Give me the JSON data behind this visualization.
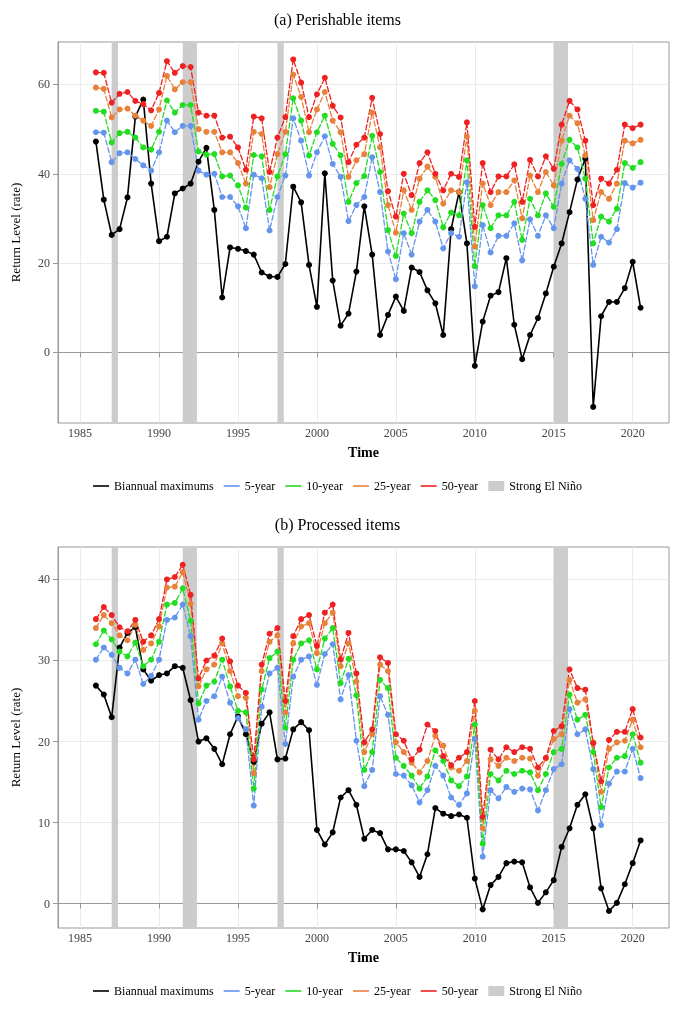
{
  "chart_data": [
    {
      "type": "line",
      "title": "(a) Perishable items",
      "xlabel": "Time",
      "ylabel": "Return Level (rate)",
      "x": [
        1986,
        1986.5,
        1987,
        1987.5,
        1988,
        1988.5,
        1989,
        1989.5,
        1990,
        1990.5,
        1991,
        1991.5,
        1992,
        1992.5,
        1993,
        1993.5,
        1994,
        1994.5,
        1995,
        1995.5,
        1996,
        1996.5,
        1997,
        1997.5,
        1998,
        1998.5,
        1999,
        1999.5,
        2000,
        2000.5,
        2001,
        2001.5,
        2002,
        2002.5,
        2003,
        2003.5,
        2004,
        2004.5,
        2005,
        2005.5,
        2006,
        2006.5,
        2007,
        2007.5,
        2008,
        2008.5,
        2009,
        2009.5,
        2010,
        2010.5,
        2011,
        2011.5,
        2012,
        2012.5,
        2013,
        2013.5,
        2014,
        2014.5,
        2015,
        2015.5,
        2016,
        2016.5,
        2017,
        2017.5,
        2018,
        2018.5,
        2019,
        2019.5,
        2020,
        2020.5
      ],
      "series": [
        {
          "name": "Biannual maximums",
          "color": "#000000",
          "line_style": "solid",
          "values": [
            47.2,
            34.2,
            26.3,
            27.6,
            34.7,
            52.8,
            56.6,
            37.8,
            24.9,
            25.9,
            35.6,
            36.7,
            37.8,
            42.7,
            45.8,
            31.9,
            12.3,
            23.5,
            23.2,
            22.7,
            21.9,
            17.9,
            17.0,
            16.9,
            19.8,
            37.1,
            33.6,
            19.6,
            10.2,
            40.1,
            16.1,
            6.0,
            8.7,
            18.1,
            32.7,
            21.9,
            3.9,
            8.4,
            12.5,
            9.3,
            19.0,
            18.0,
            13.9,
            11.0,
            3.9,
            27.6,
            35.9,
            24.4,
            -3.0,
            6.9,
            12.7,
            13.5,
            21.1,
            6.2,
            -1.5,
            3.9,
            7.7,
            13.2,
            19.2,
            24.4,
            31.4,
            38.7,
            43.4,
            -12.2,
            8.1,
            11.3,
            11.3,
            14.4,
            20.3,
            10.0
          ]
        },
        {
          "name": "5-year",
          "color": "#6495ed",
          "line_style": "dashed",
          "values": [
            49.3,
            49.2,
            42.6,
            44.6,
            44.8,
            43.3,
            41.9,
            40.7,
            44.8,
            51.9,
            49.3,
            50.7,
            50.7,
            40.7,
            39.8,
            40.0,
            34.8,
            34.8,
            32.7,
            27.8,
            39.8,
            39.0,
            27.3,
            34.8,
            39.6,
            52.4,
            47.4,
            39.6,
            44.8,
            48.4,
            42.2,
            39.3,
            29.4,
            33.0,
            34.8,
            43.7,
            35.9,
            22.6,
            16.4,
            26.7,
            21.9,
            29.3,
            31.9,
            29.3,
            23.3,
            26.7,
            25.9,
            38.1,
            14.8,
            28.5,
            22.4,
            26.1,
            26.1,
            28.9,
            20.6,
            29.8,
            26.1,
            30.7,
            27.8,
            37.8,
            43.0,
            41.1,
            34.4,
            19.6,
            25.9,
            24.6,
            27.6,
            37.9,
            36.9,
            38.0
          ]
        },
        {
          "name": "10-year",
          "color": "#22dd22",
          "line_style": "dashed",
          "values": [
            54.1,
            53.9,
            47.0,
            49.1,
            49.4,
            48.1,
            45.9,
            45.4,
            49.4,
            56.4,
            53.7,
            55.4,
            55.4,
            45.0,
            44.3,
            44.4,
            39.4,
            39.6,
            37.4,
            32.4,
            44.2,
            43.9,
            31.9,
            39.4,
            44.4,
            56.9,
            51.9,
            44.1,
            49.3,
            53.0,
            46.7,
            44.1,
            33.7,
            37.9,
            39.5,
            48.5,
            40.4,
            27.4,
            21.6,
            31.1,
            26.7,
            33.7,
            36.3,
            34.1,
            28.0,
            31.3,
            30.7,
            43.0,
            19.3,
            33.0,
            27.8,
            30.7,
            30.7,
            33.7,
            25.2,
            34.4,
            30.7,
            35.6,
            32.6,
            42.2,
            47.6,
            45.9,
            38.9,
            24.4,
            30.4,
            29.3,
            32.2,
            42.4,
            41.3,
            42.6
          ]
        },
        {
          "name": "25-year",
          "color": "#e8823a",
          "line_style": "dashed",
          "values": [
            59.3,
            59.0,
            52.6,
            54.4,
            54.6,
            53.0,
            51.9,
            50.7,
            54.4,
            61.9,
            58.9,
            60.5,
            60.5,
            50.0,
            49.4,
            49.4,
            44.8,
            44.8,
            42.4,
            37.8,
            49.4,
            48.9,
            37.0,
            44.4,
            49.4,
            62.2,
            57.2,
            49.3,
            54.4,
            58.3,
            51.9,
            49.3,
            39.3,
            43.0,
            44.4,
            53.7,
            45.9,
            33.0,
            26.8,
            36.3,
            31.9,
            38.9,
            41.6,
            39.3,
            33.3,
            36.3,
            35.9,
            48.3,
            23.7,
            37.8,
            33.0,
            35.9,
            35.9,
            38.5,
            30.0,
            39.6,
            35.9,
            40.4,
            37.4,
            47.4,
            53.0,
            51.3,
            44.1,
            29.6,
            35.9,
            34.4,
            37.8,
            47.4,
            46.8,
            47.6
          ]
        },
        {
          "name": "50-year",
          "color": "#ee2222",
          "line_style": "dashed",
          "values": [
            62.7,
            62.6,
            55.9,
            57.9,
            58.3,
            56.3,
            55.6,
            54.2,
            58.1,
            65.2,
            62.6,
            64.1,
            63.9,
            53.7,
            53.0,
            53.0,
            48.1,
            48.3,
            45.9,
            40.9,
            52.8,
            52.4,
            40.4,
            48.1,
            52.7,
            65.6,
            60.4,
            52.7,
            57.8,
            61.5,
            55.2,
            52.6,
            42.6,
            46.5,
            48.1,
            57.0,
            48.9,
            36.1,
            30.4,
            40.0,
            35.2,
            42.4,
            44.8,
            40.0,
            36.3,
            40.0,
            39.3,
            51.5,
            28.1,
            42.4,
            35.9,
            39.4,
            39.4,
            42.1,
            33.7,
            43.1,
            39.4,
            43.9,
            41.1,
            51.0,
            56.3,
            54.4,
            47.4,
            33.0,
            38.9,
            37.8,
            40.9,
            51.0,
            50.2,
            51.0
          ]
        }
      ],
      "bands": [
        {
          "axis": "x",
          "from": 1987.0,
          "to": 1987.4,
          "label": "Strong El Niño",
          "color": "#cccccc"
        },
        {
          "axis": "x",
          "from": 1991.5,
          "to": 1992.4,
          "color": "#cccccc"
        },
        {
          "axis": "x",
          "from": 1997.5,
          "to": 1997.9,
          "color": "#cccccc"
        },
        {
          "axis": "x",
          "from": 2015.0,
          "to": 2015.9,
          "color": "#cccccc"
        }
      ],
      "xlim": [
        1983.6,
        2022.3
      ],
      "xticks": [
        1985,
        1990,
        1995,
        2000,
        2005,
        2010,
        2015,
        2020
      ],
      "ylim": [
        -15.8,
        69.5
      ],
      "yticks": [
        0,
        20,
        40,
        60
      ],
      "grid": true,
      "legend": "bottom",
      "marker": "circle"
    },
    {
      "type": "line",
      "title": "(b) Processed items",
      "xlabel": "Time",
      "ylabel": "Return Level (rate)",
      "x": [
        1986,
        1986.5,
        1987,
        1987.5,
        1988,
        1988.5,
        1989,
        1989.5,
        1990,
        1990.5,
        1991,
        1991.5,
        1992,
        1992.5,
        1993,
        1993.5,
        1994,
        1994.5,
        1995,
        1995.5,
        1996,
        1996.5,
        1997,
        1997.5,
        1998,
        1998.5,
        1999,
        1999.5,
        2000,
        2000.5,
        2001,
        2001.5,
        2002,
        2002.5,
        2003,
        2003.5,
        2004,
        2004.5,
        2005,
        2005.5,
        2006,
        2006.5,
        2007,
        2007.5,
        2008,
        2008.5,
        2009,
        2009.5,
        2010,
        2010.5,
        2011,
        2011.5,
        2012,
        2012.5,
        2013,
        2013.5,
        2014,
        2014.5,
        2015,
        2015.5,
        2016,
        2016.5,
        2017,
        2017.5,
        2018,
        2018.5,
        2019,
        2019.5,
        2020,
        2020.5
      ],
      "series": [
        {
          "name": "Biannual maximums",
          "color": "#000000",
          "line_style": "solid",
          "values": [
            26.9,
            25.8,
            23.0,
            31.6,
            33.4,
            34.1,
            28.9,
            27.5,
            28.2,
            28.4,
            29.3,
            29.1,
            25.1,
            20.0,
            20.4,
            19.1,
            17.2,
            20.9,
            23.1,
            20.9,
            17.5,
            22.2,
            23.6,
            17.8,
            17.9,
            21.5,
            22.4,
            21.4,
            9.1,
            7.3,
            8.8,
            13.1,
            14.0,
            12.2,
            8.0,
            9.1,
            8.7,
            6.7,
            6.7,
            6.5,
            5.1,
            3.3,
            6.1,
            11.8,
            11.1,
            10.8,
            11.0,
            10.6,
            3.1,
            -0.7,
            2.3,
            3.3,
            5.0,
            5.2,
            5.1,
            2.0,
            0.1,
            1.4,
            2.9,
            7.0,
            9.3,
            12.2,
            13.5,
            9.3,
            1.9,
            -0.9,
            0.1,
            2.4,
            5.0,
            7.8
          ]
        },
        {
          "name": "5-year",
          "color": "#6495ed",
          "line_style": "dashed",
          "values": [
            30.1,
            31.6,
            30.7,
            29.1,
            28.4,
            30.1,
            27.1,
            28.1,
            30.1,
            35.0,
            35.3,
            36.9,
            33.0,
            22.7,
            25.0,
            25.6,
            28.0,
            24.8,
            22.9,
            21.5,
            12.1,
            24.3,
            28.4,
            29.1,
            19.7,
            28.0,
            30.1,
            30.5,
            27.0,
            30.8,
            32.0,
            25.2,
            28.2,
            20.1,
            14.5,
            16.5,
            25.6,
            23.3,
            16.0,
            15.8,
            14.6,
            12.5,
            14.0,
            17.0,
            15.8,
            13.1,
            12.2,
            13.6,
            20.3,
            5.8,
            14.0,
            13.0,
            14.4,
            13.8,
            14.2,
            14.1,
            11.5,
            14.0,
            16.6,
            17.2,
            24.0,
            20.9,
            21.5,
            16.6,
            9.7,
            14.8,
            16.3,
            16.3,
            19.1,
            15.5
          ]
        },
        {
          "name": "10-year",
          "color": "#22dd22",
          "line_style": "dashed",
          "values": [
            32.0,
            33.7,
            32.6,
            31.1,
            30.5,
            32.2,
            29.3,
            30.1,
            32.3,
            36.9,
            37.1,
            38.9,
            34.9,
            24.7,
            26.9,
            27.4,
            30.1,
            26.8,
            23.8,
            23.6,
            14.2,
            26.4,
            30.3,
            31.1,
            21.7,
            30.1,
            32.1,
            32.5,
            28.9,
            32.7,
            34.0,
            27.2,
            30.2,
            25.7,
            16.5,
            18.7,
            27.6,
            26.6,
            18.0,
            17.0,
            15.8,
            14.2,
            15.7,
            18.9,
            17.6,
            15.2,
            14.5,
            15.7,
            22.1,
            7.4,
            16.0,
            15.2,
            16.4,
            16.0,
            16.4,
            16.2,
            14.0,
            16.0,
            18.7,
            19.1,
            25.8,
            22.7,
            23.3,
            18.7,
            11.9,
            16.8,
            18.0,
            18.2,
            20.9,
            17.4
          ]
        },
        {
          "name": "25-year",
          "color": "#e8823a",
          "line_style": "dashed",
          "values": [
            34.0,
            35.6,
            34.6,
            33.1,
            32.5,
            34.4,
            31.3,
            32.1,
            34.2,
            39.0,
            39.1,
            40.9,
            37.0,
            26.8,
            28.9,
            29.5,
            32.1,
            28.7,
            25.6,
            25.4,
            16.1,
            28.7,
            32.3,
            33.1,
            23.6,
            32.1,
            34.2,
            34.6,
            30.9,
            34.6,
            35.9,
            29.3,
            32.1,
            27.4,
            18.7,
            20.9,
            29.5,
            28.7,
            19.9,
            18.7,
            17.4,
            16.2,
            17.6,
            20.7,
            19.5,
            16.8,
            16.4,
            17.6,
            23.8,
            9.3,
            17.8,
            17.0,
            18.0,
            17.6,
            18.0,
            17.9,
            15.8,
            17.9,
            20.3,
            20.9,
            27.6,
            24.8,
            25.2,
            19.9,
            13.8,
            19.1,
            19.9,
            20.1,
            22.7,
            19.3
          ]
        },
        {
          "name": "50-year",
          "color": "#ee2222",
          "line_style": "dashed",
          "values": [
            35.1,
            36.6,
            35.6,
            34.1,
            33.6,
            35.0,
            32.3,
            33.1,
            35.1,
            40.0,
            40.3,
            41.8,
            38.1,
            27.8,
            30.0,
            30.6,
            32.7,
            29.9,
            26.9,
            26.0,
            17.8,
            29.5,
            33.3,
            34.0,
            25.0,
            33.0,
            35.1,
            35.6,
            31.8,
            35.9,
            36.9,
            30.1,
            33.4,
            28.4,
            19.9,
            21.5,
            30.4,
            29.7,
            20.9,
            20.1,
            17.8,
            19.0,
            22.1,
            21.3,
            18.2,
            17.1,
            18.0,
            18.7,
            25.0,
            10.7,
            19.0,
            17.8,
            19.3,
            18.7,
            19.3,
            19.1,
            16.8,
            18.0,
            21.3,
            21.9,
            28.9,
            26.6,
            26.4,
            19.8,
            15.1,
            20.2,
            21.2,
            21.2,
            24.0,
            20.5
          ]
        }
      ],
      "bands": [
        {
          "axis": "x",
          "from": 1987.0,
          "to": 1987.4,
          "label": "Strong El Niño",
          "color": "#cccccc"
        },
        {
          "axis": "x",
          "from": 1991.5,
          "to": 1992.4,
          "color": "#cccccc"
        },
        {
          "axis": "x",
          "from": 1997.5,
          "to": 1997.9,
          "color": "#cccccc"
        },
        {
          "axis": "x",
          "from": 2015.0,
          "to": 2015.9,
          "color": "#cccccc"
        }
      ],
      "xlim": [
        1983.6,
        2022.3
      ],
      "xticks": [
        1985,
        1990,
        1995,
        2000,
        2005,
        2010,
        2015,
        2020
      ],
      "ylim": [
        -3,
        44
      ],
      "yticks": [
        0,
        10,
        20,
        30,
        40
      ],
      "grid": true,
      "legend": "bottom",
      "marker": "circle"
    }
  ]
}
